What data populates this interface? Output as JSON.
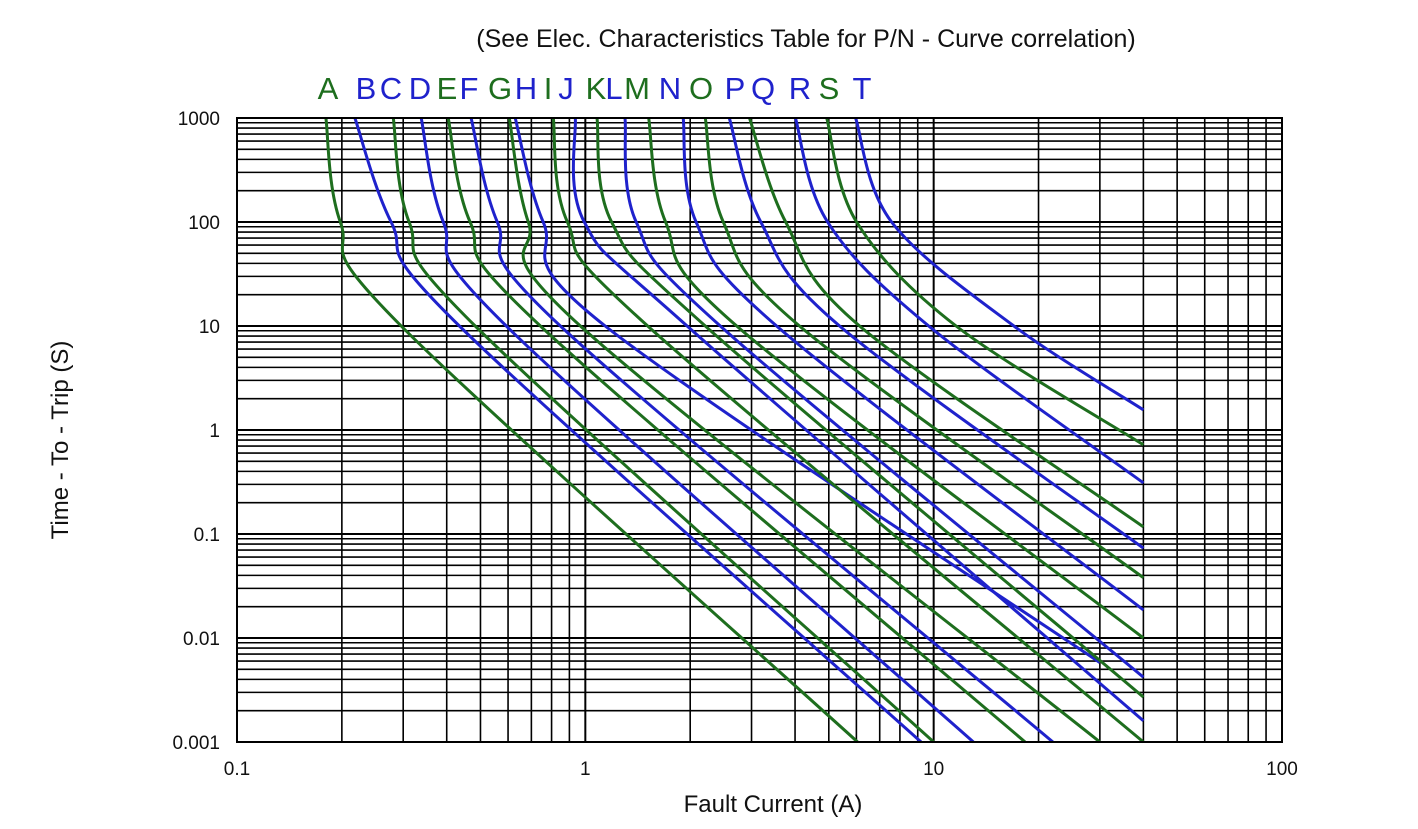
{
  "chart_data": {
    "type": "line",
    "title": "(See Elec. Characteristics Table for P/N - Curve correlation)",
    "xlabel": "Fault Current (A)",
    "ylabel": "Time - To - Trip (S)",
    "x_scale": "log",
    "y_scale": "log",
    "xlim": [
      0.1,
      100
    ],
    "ylim": [
      0.001,
      1000
    ],
    "x_ticks": [
      "0.1",
      "1",
      "10",
      "100"
    ],
    "y_ticks": [
      "1000",
      "100",
      "10",
      "1",
      "0.1",
      "0.01",
      "0.001"
    ],
    "grid": true,
    "legend": "top (curve letters above plot)",
    "colors": {
      "green": "#1e6e1e",
      "blue": "#1f22cc"
    },
    "series": [
      {
        "name": "A",
        "color": "green",
        "label_color": "#1e6e1e",
        "points": [
          [
            0.18,
            1000
          ],
          [
            0.198,
            100
          ],
          [
            0.296,
            10
          ],
          [
            6.05,
            0.001
          ]
        ]
      },
      {
        "name": "B",
        "color": "blue",
        "label_color": "#1f22cc",
        "points": [
          [
            0.218,
            1000
          ],
          [
            0.277,
            100
          ],
          [
            0.435,
            10
          ],
          [
            9.2,
            0.001
          ]
        ]
      },
      {
        "name": "C",
        "color": "green",
        "label_color": "#1f22cc",
        "points": [
          [
            0.281,
            1000
          ],
          [
            0.312,
            100
          ],
          [
            0.483,
            10
          ],
          [
            10,
            0.001
          ]
        ]
      },
      {
        "name": "D",
        "color": "blue",
        "label_color": "#1f22cc",
        "points": [
          [
            0.338,
            1000
          ],
          [
            0.391,
            100
          ],
          [
            0.593,
            10
          ],
          [
            13,
            0.001
          ]
        ]
      },
      {
        "name": "E",
        "color": "green",
        "label_color": "#1e6e1e",
        "points": [
          [
            0.404,
            1000
          ],
          [
            0.467,
            100
          ],
          [
            0.743,
            10
          ],
          [
            18.3,
            0.001
          ]
        ]
      },
      {
        "name": "F",
        "color": "blue",
        "label_color": "#1f22cc",
        "points": [
          [
            0.47,
            1000
          ],
          [
            0.559,
            100
          ],
          [
            0.848,
            10
          ],
          [
            22,
            0.001
          ]
        ]
      },
      {
        "name": "G",
        "color": "green",
        "label_color": "#1e6e1e",
        "points": [
          [
            0.605,
            1000
          ],
          [
            0.686,
            100
          ],
          [
            0.968,
            10
          ],
          [
            30,
            0.001
          ]
        ]
      },
      {
        "name": "H",
        "color": "blue",
        "label_color": "#1f22cc",
        "points": [
          [
            0.629,
            1000
          ],
          [
            0.757,
            100
          ],
          [
            1.14,
            10
          ],
          [
            30,
            0.0058
          ]
        ]
      },
      {
        "name": "I",
        "color": "green",
        "label_color": "#1e6e1e",
        "points": [
          [
            0.809,
            1000
          ],
          [
            0.888,
            100
          ],
          [
            1.51,
            10
          ],
          [
            40,
            0.001
          ]
        ]
      },
      {
        "name": "J",
        "color": "blue",
        "label_color": "#1f22cc",
        "points": [
          [
            0.936,
            1000
          ],
          [
            0.993,
            100
          ],
          [
            1.96,
            10
          ],
          [
            40,
            0.0016
          ]
        ]
      },
      {
        "name": "K",
        "color": "green",
        "label_color": "#1e6e1e",
        "points": [
          [
            1.08,
            1000
          ],
          [
            1.19,
            100
          ],
          [
            2.21,
            10
          ],
          [
            40,
            0.0027
          ]
        ]
      },
      {
        "name": "L",
        "color": "blue",
        "label_color": "#1f22cc",
        "points": [
          [
            1.3,
            1000
          ],
          [
            1.4,
            100
          ],
          [
            2.44,
            10
          ],
          [
            40,
            0.0042
          ]
        ]
      },
      {
        "name": "M",
        "color": "green",
        "label_color": "#1e6e1e",
        "points": [
          [
            1.52,
            1000
          ],
          [
            1.7,
            100
          ],
          [
            2.72,
            10
          ],
          [
            40,
            0.01
          ]
        ]
      },
      {
        "name": "N",
        "color": "blue",
        "label_color": "#1f22cc",
        "points": [
          [
            1.91,
            1000
          ],
          [
            2.08,
            100
          ],
          [
            3.54,
            10
          ],
          [
            40,
            0.0186
          ]
        ]
      },
      {
        "name": "O",
        "color": "green",
        "label_color": "#1e6e1e",
        "points": [
          [
            2.21,
            1000
          ],
          [
            2.49,
            100
          ],
          [
            4.12,
            10
          ],
          [
            40,
            0.038
          ]
        ]
      },
      {
        "name": "P",
        "color": "blue",
        "label_color": "#1f22cc",
        "points": [
          [
            2.59,
            1000
          ],
          [
            3.19,
            100
          ],
          [
            5.37,
            10
          ],
          [
            40,
            0.073
          ]
        ]
      },
      {
        "name": "Q",
        "color": "green",
        "label_color": "#1f22cc",
        "points": [
          [
            2.96,
            1000
          ],
          [
            3.76,
            100
          ],
          [
            6.13,
            10
          ],
          [
            40,
            0.117
          ]
        ]
      },
      {
        "name": "R",
        "color": "blue",
        "label_color": "#1f22cc",
        "points": [
          [
            4.01,
            1000
          ],
          [
            4.96,
            100
          ],
          [
            9.68,
            10
          ],
          [
            40,
            0.31
          ]
        ]
      },
      {
        "name": "S",
        "color": "green",
        "label_color": "#1e6e1e",
        "points": [
          [
            4.93,
            1000
          ],
          [
            6.01,
            100
          ],
          [
            11.6,
            10
          ],
          [
            40,
            0.72
          ]
        ]
      },
      {
        "name": "T",
        "color": "blue",
        "label_color": "#1f22cc",
        "points": [
          [
            5.97,
            1000
          ],
          [
            7.57,
            100
          ],
          [
            17.0,
            10
          ],
          [
            40,
            1.56
          ]
        ]
      }
    ]
  }
}
